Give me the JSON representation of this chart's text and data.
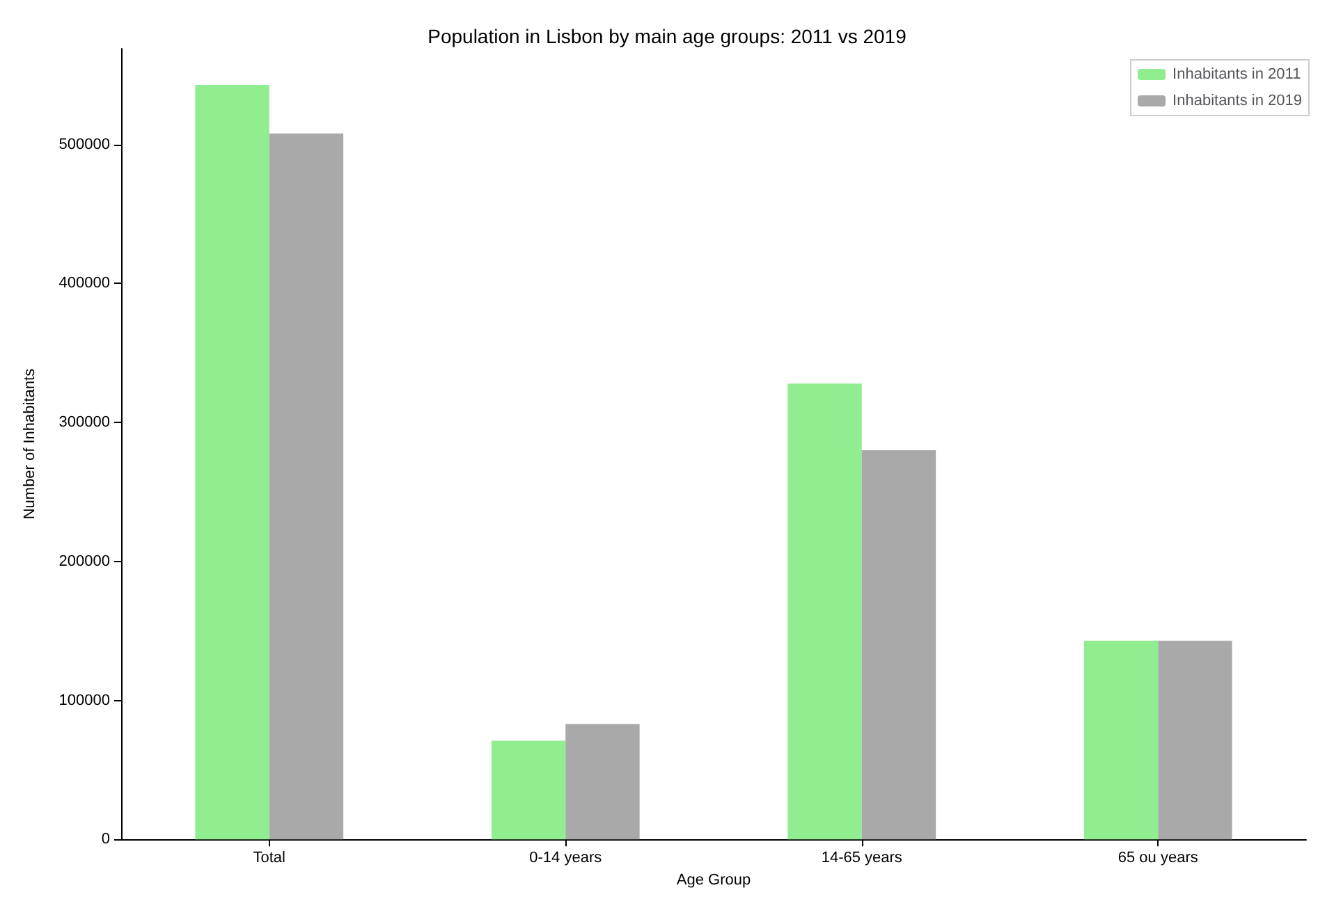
{
  "chart_data": {
    "type": "bar",
    "title": "Population in Lisbon by main age groups: 2011 vs 2019",
    "xlabel": "Age Group",
    "ylabel": "Number of Inhabitants",
    "categories": [
      "Total",
      "0-14 years",
      "14-65 years",
      "65 ou years"
    ],
    "series": [
      {
        "name": "Inhabitants in 2011",
        "color": "#90ee90",
        "values": [
          543000,
          71000,
          328000,
          143000
        ]
      },
      {
        "name": "Inhabitants in 2019",
        "color": "#a9a9a9",
        "values": [
          508000,
          83000,
          280000,
          143000
        ]
      }
    ],
    "ylim": [
      0,
      569000
    ],
    "yticks": [
      0,
      100000,
      200000,
      300000,
      400000,
      500000
    ],
    "grid": false,
    "legend": "top right"
  }
}
